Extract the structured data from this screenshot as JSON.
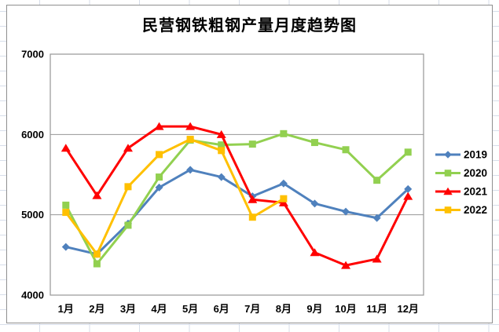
{
  "title": "民营钢铁粗钢产量月度趋势图",
  "chart_data": {
    "type": "line",
    "title": "民营钢铁粗钢产量月度趋势图",
    "categories": [
      "1月",
      "2月",
      "3月",
      "4月",
      "5月",
      "6月",
      "7月",
      "8月",
      "9月",
      "10月",
      "11月",
      "12月"
    ],
    "series": [
      {
        "name": "2019",
        "color": "#4F81BD",
        "marker": "diamond",
        "values": [
          4600,
          4510,
          4890,
          5340,
          5560,
          5470,
          5230,
          5390,
          5140,
          5040,
          4960,
          5320
        ]
      },
      {
        "name": "2020",
        "color": "#92D050",
        "marker": "square",
        "values": [
          5120,
          4390,
          4870,
          5470,
          5930,
          5870,
          5880,
          6010,
          5900,
          5810,
          5430,
          5780
        ]
      },
      {
        "name": "2021",
        "color": "#FF0000",
        "marker": "triangle",
        "values": [
          5830,
          5240,
          5830,
          6100,
          6100,
          6000,
          5190,
          5150,
          4530,
          4370,
          4450,
          5230
        ]
      },
      {
        "name": "2022",
        "color": "#FFC000",
        "marker": "square",
        "values": [
          5030,
          4510,
          5350,
          5750,
          5940,
          5800,
          4970,
          5200
        ]
      }
    ],
    "ylim": [
      4000,
      7000
    ],
    "ytick_interval": 1000,
    "yticks": [
      "4000",
      "5000",
      "6000",
      "7000"
    ],
    "grid": "horizontal",
    "gridline_color": "#969696",
    "legend_position": "right",
    "text_color": "#000000"
  }
}
